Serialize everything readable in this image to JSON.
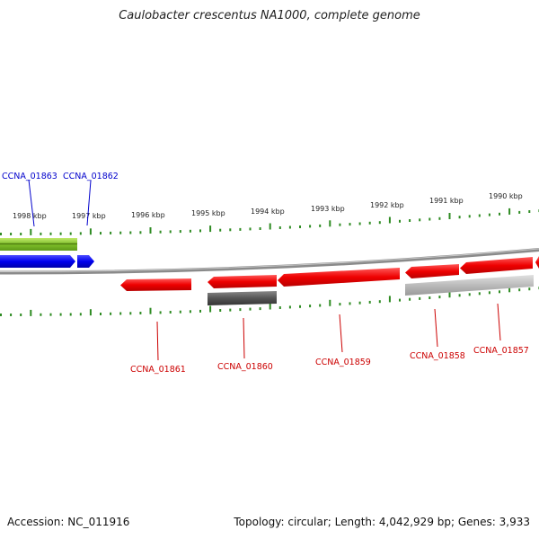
{
  "title": "Caulobacter crescentus NA1000, complete genome",
  "footer": {
    "accession": "Accession: NC_011916",
    "stats": "Topology: circular; Length: 4,042,929 bp; Genes: 3,933"
  },
  "scale": {
    "ticks": [
      "1998 kbp",
      "1997 kbp",
      "1996 kbp",
      "1995 kbp",
      "1994 kbp",
      "1993 kbp",
      "1992 kbp",
      "1991 kbp",
      "1990 kbp"
    ]
  },
  "genes": [
    {
      "name": "CCNA_01863",
      "strand": "forward",
      "color": "#0000ee"
    },
    {
      "name": "CCNA_01862",
      "strand": "forward",
      "color": "#0000ee"
    },
    {
      "name": "CCNA_01861",
      "strand": "reverse",
      "color": "#ee0000"
    },
    {
      "name": "CCNA_01860",
      "strand": "reverse",
      "color": "#ee0000"
    },
    {
      "name": "CCNA_01859",
      "strand": "reverse",
      "color": "#ee0000"
    },
    {
      "name": "CCNA_01858",
      "strand": "reverse",
      "color": "#ee0000"
    },
    {
      "name": "CCNA_01857",
      "strand": "reverse",
      "color": "#ee0000"
    }
  ],
  "colors": {
    "forward_gene": "#0000ee",
    "reverse_gene": "#ee0000",
    "backbone": "#8a8a8a",
    "tick": "#2e8b22",
    "forward_extra_track": "#7fbf2a",
    "reverse_extra_track_dark": "#555555",
    "reverse_extra_track_light": "#bbbbbb"
  }
}
